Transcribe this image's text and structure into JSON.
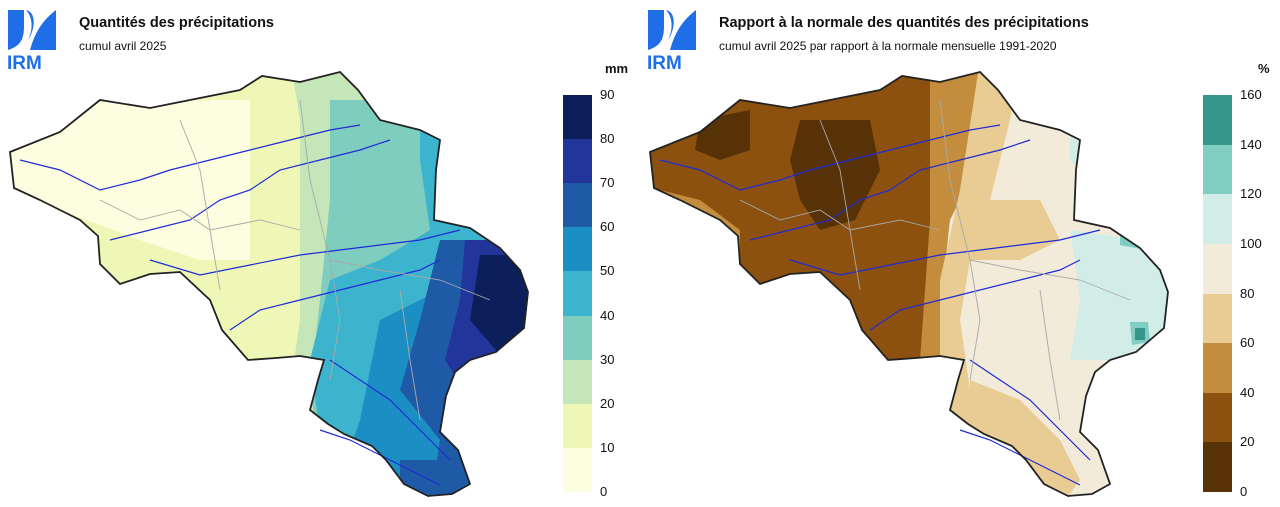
{
  "logo_text": "IRM",
  "left_panel": {
    "title": "Quantités des précipitations",
    "subtitle": "cumul avril 2025",
    "unit": "mm",
    "legend_ticks": [
      "90",
      "80",
      "70",
      "60",
      "50",
      "40",
      "30",
      "20",
      "10",
      "0"
    ],
    "legend_colors": [
      "#0c1f5b",
      "#22359a",
      "#1f5aa6",
      "#1b8fc4",
      "#3db4cd",
      "#7fcdbe",
      "#c4e6b8",
      "#eef7b6",
      "#fdfedf"
    ]
  },
  "right_panel": {
    "title": "Rapport à la normale des quantités des précipitations",
    "subtitle": "cumul avril 2025 par rapport à la normale mensuelle 1991-2020",
    "unit": "%",
    "legend_ticks": [
      "160",
      "140",
      "120",
      "100",
      "80",
      "60",
      "40",
      "20",
      "0"
    ],
    "legend_colors": [
      "#35968c",
      "#80cdc1",
      "#d2ece8",
      "#f3ebda",
      "#e8cc94",
      "#c48c3d",
      "#8c500f",
      "#573206"
    ]
  }
}
